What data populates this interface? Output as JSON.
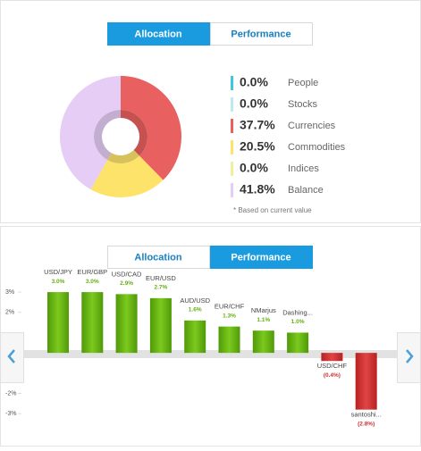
{
  "panels": [
    {
      "tabs": [
        "Allocation",
        "Performance"
      ],
      "active": 0
    },
    {
      "tabs": [
        "Allocation",
        "Performance"
      ],
      "active": 1
    }
  ],
  "chart_data": [
    {
      "type": "pie",
      "categories": [
        "People",
        "Stocks",
        "Currencies",
        "Commodities",
        "Indices",
        "Balance"
      ],
      "values": [
        0.0,
        0.0,
        37.7,
        20.5,
        0.0,
        41.8
      ],
      "value_labels": [
        "0.0%",
        "0.0%",
        "37.7%",
        "20.5%",
        "0.0%",
        "41.8%"
      ],
      "colors": [
        "#3cc8e0",
        "#bde9f3",
        "#e8605f",
        "#fde36a",
        "#f1ee9c",
        "#e6cdf5"
      ],
      "note": "* Based on current value"
    },
    {
      "type": "bar",
      "categories": [
        "USD/JPY",
        "EUR/GBP",
        "USD/CAD",
        "EUR/USD",
        "AUD/USD",
        "EUR/CHF",
        "NMarjus",
        "Dashing...",
        "USD/CHF",
        "santoshi..."
      ],
      "values": [
        3.0,
        3.0,
        2.9,
        2.7,
        1.6,
        1.3,
        1.1,
        1.0,
        -0.4,
        -2.8
      ],
      "value_labels": [
        "3.0%",
        "3.0%",
        "2.9%",
        "2.7%",
        "1.6%",
        "1.3%",
        "1.1%",
        "1.0%",
        "(0.4%)",
        "(2.8%)"
      ],
      "ylim": [
        -3.3,
        3.4
      ],
      "yticks": [
        {
          "value": 3,
          "label": "3%"
        },
        {
          "value": 2,
          "label": "2%"
        },
        {
          "value": -2,
          "label": "-2%"
        },
        {
          "value": -3,
          "label": "-3%"
        }
      ],
      "color": "#62b012",
      "negative_color": "#cf3131"
    }
  ]
}
